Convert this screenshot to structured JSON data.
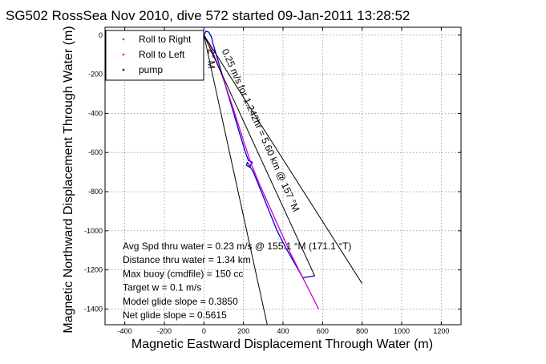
{
  "chart_data": {
    "type": "line",
    "title": "SG502 RossSea Nov 2010, dive 572 started 09-Jan-2011 13:28:52",
    "xlabel": "Magnetic Eastward Displacement Through Water (m)",
    "ylabel": "Magnetic Northward Displacement Through Water (m)",
    "xlim": [
      -500,
      1300
    ],
    "ylim": [
      -1480,
      40
    ],
    "xticks": [
      -400,
      -200,
      0,
      200,
      400,
      600,
      800,
      1000,
      1200
    ],
    "yticks": [
      0,
      -200,
      -400,
      -600,
      -800,
      -1000,
      -1200,
      -1400
    ],
    "grid": true,
    "legend_position": "top-left",
    "legend": [
      {
        "label": "Roll to Right",
        "color": "#00aa00",
        "marker": "dot"
      },
      {
        "label": "Roll to Left",
        "color": "#ff0000",
        "marker": "dot"
      },
      {
        "label": "pump",
        "color": "#000000",
        "marker": "dot"
      }
    ],
    "series": [
      {
        "role": "track-blue",
        "color": "#0000cc",
        "x": [
          0,
          10,
          25,
          38,
          45,
          80,
          130,
          180,
          210,
          225,
          245,
          230,
          215,
          220,
          250,
          290,
          330,
          370,
          410,
          450,
          500,
          560
        ],
        "y": [
          0,
          20,
          15,
          -10,
          -40,
          -160,
          -330,
          -500,
          -600,
          -640,
          -650,
          -675,
          -665,
          -650,
          -700,
          -800,
          -900,
          -1000,
          -1080,
          -1150,
          -1240,
          -1230
        ]
      },
      {
        "role": "track-magenta",
        "color": "#cc00cc",
        "x": [
          0,
          30,
          90,
          150,
          200,
          240,
          280,
          320,
          360,
          400,
          440,
          480,
          520,
          560,
          580
        ],
        "y": [
          0,
          -50,
          -200,
          -380,
          -540,
          -660,
          -760,
          -850,
          -940,
          -1030,
          -1120,
          -1200,
          -1280,
          -1360,
          -1400
        ]
      },
      {
        "role": "heading-line-left",
        "color": "#000000",
        "x": [
          0,
          320
        ],
        "y": [
          0,
          -1480
        ]
      },
      {
        "role": "heading-line-right",
        "color": "#000000",
        "x": [
          0,
          800
        ],
        "y": [
          0,
          -1270
        ]
      },
      {
        "role": "heading-line-center",
        "color": "#000000",
        "x": [
          0,
          560
        ],
        "y": [
          0,
          -1230
        ]
      }
    ],
    "rotated_labels": [
      {
        "text": "0.25 m/s for 1.242hr = 5.60 km @ 157 °M",
        "x": 90,
        "y": -80,
        "angle": 66
      },
      {
        "text": "2° M",
        "x": 20,
        "y": -70,
        "angle": 90
      }
    ],
    "annotations": [
      "Avg Spd thru water =  0.23 m/s @ 155.1   °M (171.1 °T)",
      "Distance thru water =  1.34 km",
      "Max buoy (cmdfile) = 150 cc",
      "Target w = 0.1 m/s",
      "Model glide slope = 0.3850",
      "Net glide slope = 0.5615"
    ]
  }
}
